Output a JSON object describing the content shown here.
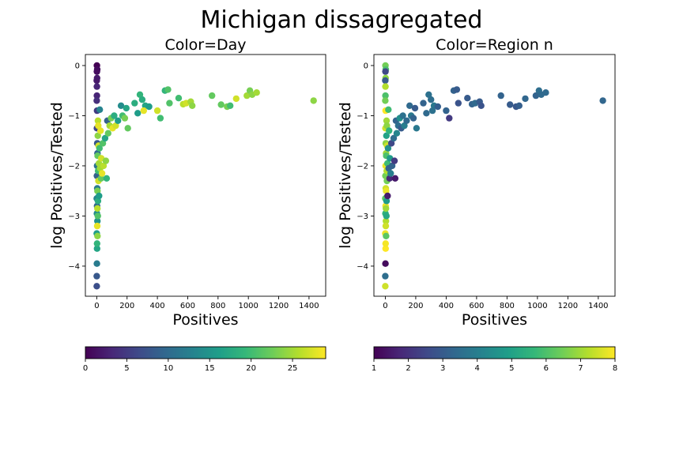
{
  "suptitle": "Michigan dissagregated",
  "chart_data": [
    {
      "type": "scatter",
      "title": "Color=Day",
      "xlabel": "Positives",
      "ylabel": "log Positives/Tested",
      "xlim": [
        -75,
        1510
      ],
      "ylim": [
        -4.6,
        0.22
      ],
      "xticks": [
        0,
        200,
        400,
        600,
        800,
        1000,
        1200,
        1400
      ],
      "yticks": [
        -4,
        -3,
        -2,
        -1,
        0
      ],
      "colorbar": {
        "label": "",
        "range": [
          0,
          29
        ],
        "ticks": [
          0,
          5,
          10,
          15,
          20,
          25
        ],
        "colormap": "viridis",
        "placement": "bottom"
      },
      "points": [
        {
          "x": 1,
          "y": 0.0,
          "c": 0
        },
        {
          "x": 3,
          "y": -0.08,
          "c": 1
        },
        {
          "x": 1,
          "y": -0.12,
          "c": 1
        },
        {
          "x": 2,
          "y": -0.25,
          "c": 2
        },
        {
          "x": 0,
          "y": -0.3,
          "c": 2
        },
        {
          "x": 1,
          "y": -0.42,
          "c": 3
        },
        {
          "x": 1,
          "y": -0.6,
          "c": 3
        },
        {
          "x": 0,
          "y": -0.7,
          "c": 4
        },
        {
          "x": 2,
          "y": -0.9,
          "c": 5
        },
        {
          "x": 1,
          "y": -1.25,
          "c": 6
        },
        {
          "x": 3,
          "y": -1.55,
          "c": 8
        },
        {
          "x": 5,
          "y": -1.75,
          "c": 10
        },
        {
          "x": 2,
          "y": -2.0,
          "c": 11
        },
        {
          "x": 1,
          "y": -2.2,
          "c": 9
        },
        {
          "x": 3,
          "y": -2.45,
          "c": 12
        },
        {
          "x": 0,
          "y": -2.65,
          "c": 13
        },
        {
          "x": 2,
          "y": -2.8,
          "c": 10
        },
        {
          "x": 1,
          "y": -2.95,
          "c": 14
        },
        {
          "x": 4,
          "y": -3.1,
          "c": 15
        },
        {
          "x": 0,
          "y": -3.35,
          "c": 16
        },
        {
          "x": 2,
          "y": -3.65,
          "c": 17
        },
        {
          "x": 1,
          "y": -3.95,
          "c": 12
        },
        {
          "x": 0,
          "y": -4.2,
          "c": 8
        },
        {
          "x": 0,
          "y": -4.4,
          "c": 7
        },
        {
          "x": 8,
          "y": -1.1,
          "c": 26
        },
        {
          "x": 10,
          "y": -1.2,
          "c": 28
        },
        {
          "x": 7,
          "y": -1.4,
          "c": 24
        },
        {
          "x": 12,
          "y": -1.6,
          "c": 27
        },
        {
          "x": 6,
          "y": -1.8,
          "c": 22
        },
        {
          "x": 14,
          "y": -1.95,
          "c": 25
        },
        {
          "x": 9,
          "y": -2.1,
          "c": 20
        },
        {
          "x": 11,
          "y": -2.3,
          "c": 27
        },
        {
          "x": 5,
          "y": -2.5,
          "c": 23
        },
        {
          "x": 8,
          "y": -2.7,
          "c": 18
        },
        {
          "x": 4,
          "y": -2.85,
          "c": 26
        },
        {
          "x": 7,
          "y": -3.0,
          "c": 21
        },
        {
          "x": 3,
          "y": -3.2,
          "c": 28
        },
        {
          "x": 5,
          "y": -3.4,
          "c": 24
        },
        {
          "x": 2,
          "y": -3.55,
          "c": 19
        },
        {
          "x": 20,
          "y": -0.88,
          "c": 13
        },
        {
          "x": 18,
          "y": -1.65,
          "c": 20
        },
        {
          "x": 22,
          "y": -2.05,
          "c": 25
        },
        {
          "x": 25,
          "y": -1.3,
          "c": 28
        },
        {
          "x": 15,
          "y": -2.6,
          "c": 16
        },
        {
          "x": 30,
          "y": -1.85,
          "c": 27
        },
        {
          "x": 28,
          "y": -2.25,
          "c": 22
        },
        {
          "x": 40,
          "y": -1.55,
          "c": 21
        },
        {
          "x": 45,
          "y": -2.0,
          "c": 26
        },
        {
          "x": 35,
          "y": -2.15,
          "c": 28
        },
        {
          "x": 55,
          "y": -1.45,
          "c": 17
        },
        {
          "x": 60,
          "y": -1.9,
          "c": 24
        },
        {
          "x": 65,
          "y": -2.25,
          "c": 19
        },
        {
          "x": 70,
          "y": -1.1,
          "c": 9
        },
        {
          "x": 75,
          "y": -1.35,
          "c": 22
        },
        {
          "x": 85,
          "y": -1.2,
          "c": 25
        },
        {
          "x": 95,
          "y": -1.05,
          "c": 23
        },
        {
          "x": 105,
          "y": -1.25,
          "c": 28
        },
        {
          "x": 115,
          "y": -1.0,
          "c": 18
        },
        {
          "x": 125,
          "y": -1.2,
          "c": 27
        },
        {
          "x": 140,
          "y": -1.1,
          "c": 16
        },
        {
          "x": 160,
          "y": -0.8,
          "c": 14
        },
        {
          "x": 170,
          "y": -1.0,
          "c": 20
        },
        {
          "x": 185,
          "y": -1.05,
          "c": 23
        },
        {
          "x": 205,
          "y": -1.25,
          "c": 22
        },
        {
          "x": 195,
          "y": -0.85,
          "c": 17
        },
        {
          "x": 250,
          "y": -0.75,
          "c": 18
        },
        {
          "x": 270,
          "y": -0.95,
          "c": 16
        },
        {
          "x": 285,
          "y": -0.58,
          "c": 19
        },
        {
          "x": 300,
          "y": -0.68,
          "c": 18
        },
        {
          "x": 320,
          "y": -0.8,
          "c": 17
        },
        {
          "x": 345,
          "y": -0.82,
          "c": 16
        },
        {
          "x": 310,
          "y": -0.9,
          "c": 28
        },
        {
          "x": 400,
          "y": -0.9,
          "c": 27
        },
        {
          "x": 420,
          "y": -1.05,
          "c": 20
        },
        {
          "x": 450,
          "y": -0.5,
          "c": 19
        },
        {
          "x": 470,
          "y": -0.48,
          "c": 21
        },
        {
          "x": 480,
          "y": -0.75,
          "c": 21
        },
        {
          "x": 540,
          "y": -0.65,
          "c": 20
        },
        {
          "x": 570,
          "y": -0.77,
          "c": 26
        },
        {
          "x": 590,
          "y": -0.75,
          "c": 27
        },
        {
          "x": 620,
          "y": -0.72,
          "c": 25
        },
        {
          "x": 630,
          "y": -0.8,
          "c": 24
        },
        {
          "x": 760,
          "y": -0.6,
          "c": 22
        },
        {
          "x": 820,
          "y": -0.78,
          "c": 22
        },
        {
          "x": 860,
          "y": -0.82,
          "c": 23
        },
        {
          "x": 880,
          "y": -0.8,
          "c": 20
        },
        {
          "x": 920,
          "y": -0.66,
          "c": 27
        },
        {
          "x": 990,
          "y": -0.6,
          "c": 25
        },
        {
          "x": 1010,
          "y": -0.5,
          "c": 23
        },
        {
          "x": 1025,
          "y": -0.58,
          "c": 24
        },
        {
          "x": 1055,
          "y": -0.54,
          "c": 25
        },
        {
          "x": 1430,
          "y": -0.7,
          "c": 24
        }
      ]
    },
    {
      "type": "scatter",
      "title": "Color=Region n",
      "xlabel": "Positives",
      "ylabel": "log Positives/Tested",
      "xlim": [
        -75,
        1510
      ],
      "ylim": [
        -4.6,
        0.22
      ],
      "xticks": [
        0,
        200,
        400,
        600,
        800,
        1000,
        1200,
        1400
      ],
      "yticks": [
        -4,
        -3,
        -2,
        -1,
        0
      ],
      "colorbar": {
        "label": "",
        "range": [
          1,
          8
        ],
        "ticks": [
          1,
          2,
          3,
          4,
          5,
          6,
          7,
          8
        ],
        "colormap": "viridis",
        "placement": "bottom"
      },
      "points": [
        {
          "x": 1,
          "y": 0.0,
          "c": 6.5
        },
        {
          "x": 3,
          "y": -0.08,
          "c": 6.0
        },
        {
          "x": 1,
          "y": -0.12,
          "c": 2.5
        },
        {
          "x": 2,
          "y": -0.25,
          "c": 6.8
        },
        {
          "x": 0,
          "y": -0.3,
          "c": 3.0
        },
        {
          "x": 1,
          "y": -0.42,
          "c": 7.2
        },
        {
          "x": 1,
          "y": -0.6,
          "c": 6.0
        },
        {
          "x": 0,
          "y": -0.7,
          "c": 6.5
        },
        {
          "x": 2,
          "y": -0.9,
          "c": 8.0
        },
        {
          "x": 1,
          "y": -1.25,
          "c": 7.5
        },
        {
          "x": 3,
          "y": -1.55,
          "c": 6.8
        },
        {
          "x": 5,
          "y": -1.75,
          "c": 7.0
        },
        {
          "x": 2,
          "y": -2.0,
          "c": 7.8
        },
        {
          "x": 1,
          "y": -2.2,
          "c": 6.5
        },
        {
          "x": 3,
          "y": -2.45,
          "c": 7.5
        },
        {
          "x": 0,
          "y": -2.65,
          "c": 6.2
        },
        {
          "x": 2,
          "y": -2.8,
          "c": 7.9
        },
        {
          "x": 1,
          "y": -2.95,
          "c": 5.5
        },
        {
          "x": 4,
          "y": -3.1,
          "c": 7.2
        },
        {
          "x": 0,
          "y": -3.35,
          "c": 7.8
        },
        {
          "x": 2,
          "y": -3.65,
          "c": 8.0
        },
        {
          "x": 1,
          "y": -3.95,
          "c": 1.2
        },
        {
          "x": 0,
          "y": -4.2,
          "c": 3.5
        },
        {
          "x": 0,
          "y": -4.4,
          "c": 7.5
        },
        {
          "x": 8,
          "y": -1.1,
          "c": 7.0
        },
        {
          "x": 10,
          "y": -1.2,
          "c": 6.8
        },
        {
          "x": 7,
          "y": -1.4,
          "c": 5.0
        },
        {
          "x": 12,
          "y": -1.6,
          "c": 7.5
        },
        {
          "x": 6,
          "y": -1.8,
          "c": 6.0
        },
        {
          "x": 14,
          "y": -1.95,
          "c": 5.8
        },
        {
          "x": 9,
          "y": -2.1,
          "c": 7.2
        },
        {
          "x": 11,
          "y": -2.3,
          "c": 6.5
        },
        {
          "x": 5,
          "y": -2.5,
          "c": 7.8
        },
        {
          "x": 8,
          "y": -2.7,
          "c": 4.8
        },
        {
          "x": 4,
          "y": -2.85,
          "c": 7.0
        },
        {
          "x": 7,
          "y": -3.0,
          "c": 5.2
        },
        {
          "x": 3,
          "y": -3.2,
          "c": 7.5
        },
        {
          "x": 5,
          "y": -3.4,
          "c": 6.2
        },
        {
          "x": 2,
          "y": -3.55,
          "c": 7.9
        },
        {
          "x": 20,
          "y": -0.88,
          "c": 5.8
        },
        {
          "x": 18,
          "y": -1.65,
          "c": 4.5
        },
        {
          "x": 22,
          "y": -2.05,
          "c": 3.2
        },
        {
          "x": 25,
          "y": -1.3,
          "c": 5.5
        },
        {
          "x": 15,
          "y": -2.6,
          "c": 1.5
        },
        {
          "x": 30,
          "y": -1.85,
          "c": 4.8
        },
        {
          "x": 28,
          "y": -2.25,
          "c": 1.8
        },
        {
          "x": 40,
          "y": -1.55,
          "c": 2.5
        },
        {
          "x": 45,
          "y": -2.0,
          "c": 3.2
        },
        {
          "x": 35,
          "y": -2.15,
          "c": 4.0
        },
        {
          "x": 55,
          "y": -1.45,
          "c": 3.5
        },
        {
          "x": 60,
          "y": -1.9,
          "c": 2.2
        },
        {
          "x": 65,
          "y": -2.25,
          "c": 1.5
        },
        {
          "x": 70,
          "y": -1.1,
          "c": 3.2
        },
        {
          "x": 75,
          "y": -1.35,
          "c": 4.2
        },
        {
          "x": 85,
          "y": -1.2,
          "c": 3.5
        },
        {
          "x": 95,
          "y": -1.05,
          "c": 4.5
        },
        {
          "x": 105,
          "y": -1.25,
          "c": 3.0
        },
        {
          "x": 115,
          "y": -1.0,
          "c": 3.6
        },
        {
          "x": 125,
          "y": -1.2,
          "c": 4.0
        },
        {
          "x": 140,
          "y": -1.1,
          "c": 3.4
        },
        {
          "x": 160,
          "y": -0.8,
          "c": 3.4
        },
        {
          "x": 170,
          "y": -1.0,
          "c": 3.8
        },
        {
          "x": 185,
          "y": -1.05,
          "c": 3.2
        },
        {
          "x": 205,
          "y": -1.25,
          "c": 3.8
        },
        {
          "x": 195,
          "y": -0.85,
          "c": 3.0
        },
        {
          "x": 250,
          "y": -0.75,
          "c": 3.2
        },
        {
          "x": 270,
          "y": -0.95,
          "c": 3.4
        },
        {
          "x": 285,
          "y": -0.58,
          "c": 3.6
        },
        {
          "x": 300,
          "y": -0.68,
          "c": 3.5
        },
        {
          "x": 320,
          "y": -0.8,
          "c": 3.8
        },
        {
          "x": 345,
          "y": -0.82,
          "c": 3.1
        },
        {
          "x": 310,
          "y": -0.9,
          "c": 3.6
        },
        {
          "x": 400,
          "y": -0.9,
          "c": 3.2
        },
        {
          "x": 420,
          "y": -1.05,
          "c": 2.2
        },
        {
          "x": 450,
          "y": -0.5,
          "c": 3.2
        },
        {
          "x": 470,
          "y": -0.48,
          "c": 3.0
        },
        {
          "x": 480,
          "y": -0.75,
          "c": 2.8
        },
        {
          "x": 540,
          "y": -0.65,
          "c": 3.0
        },
        {
          "x": 570,
          "y": -0.77,
          "c": 3.2
        },
        {
          "x": 590,
          "y": -0.75,
          "c": 3.4
        },
        {
          "x": 620,
          "y": -0.72,
          "c": 3.0
        },
        {
          "x": 630,
          "y": -0.8,
          "c": 2.8
        },
        {
          "x": 760,
          "y": -0.6,
          "c": 3.2
        },
        {
          "x": 820,
          "y": -0.78,
          "c": 3.0
        },
        {
          "x": 860,
          "y": -0.82,
          "c": 2.9
        },
        {
          "x": 880,
          "y": -0.8,
          "c": 3.1
        },
        {
          "x": 920,
          "y": -0.66,
          "c": 3.3
        },
        {
          "x": 990,
          "y": -0.6,
          "c": 3.2
        },
        {
          "x": 1010,
          "y": -0.5,
          "c": 3.5
        },
        {
          "x": 1025,
          "y": -0.58,
          "c": 3.4
        },
        {
          "x": 1055,
          "y": -0.54,
          "c": 3.4
        },
        {
          "x": 1430,
          "y": -0.7,
          "c": 3.3
        }
      ]
    }
  ]
}
